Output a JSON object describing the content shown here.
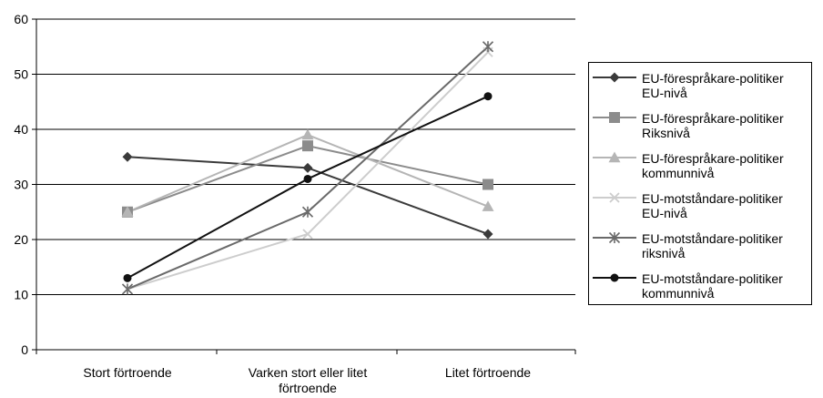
{
  "chart_data": {
    "type": "line",
    "categories": [
      "Stort förtroende",
      "Varken stort eller litet förtroende",
      "Litet förtroende"
    ],
    "category_lines": [
      [
        "Stort förtroende"
      ],
      [
        "Varken stort eller litet",
        "förtroende"
      ],
      [
        "Litet förtroende"
      ]
    ],
    "ylim": [
      0,
      60
    ],
    "yticks": [
      "0",
      "10",
      "20",
      "30",
      "40",
      "50",
      "60"
    ],
    "grid": true,
    "legend_position": "right",
    "series": [
      {
        "name": "EU-förespråkare-politiker EU-nivå",
        "label_lines": "EU-förespråkare-politiker\nEU-nivå",
        "values": [
          35,
          33,
          21
        ],
        "marker": "diamond",
        "color": "#3a3a3a"
      },
      {
        "name": "EU-förespråkare-politiker Riksnivå",
        "label_lines": "EU-förespråkare-politiker\nRiksnivå",
        "values": [
          25,
          37,
          30
        ],
        "marker": "square",
        "color": "#8c8c8c"
      },
      {
        "name": "EU-förespråkare-politiker kommunnivå",
        "label_lines": "EU-förespråkare-politiker\nkommunnivå",
        "values": [
          25,
          39,
          26
        ],
        "marker": "triangle",
        "color": "#b5b5b5"
      },
      {
        "name": "EU-motståndare-politiker EU-nivå",
        "label_lines": "EU-motståndare-politiker\nEU-nivå",
        "values": [
          11,
          21,
          54
        ],
        "marker": "x",
        "color": "#cdcdcd"
      },
      {
        "name": "EU-motståndare-politiker riksnivå",
        "label_lines": "EU-motståndare-politiker\nriksnivå",
        "values": [
          11,
          25,
          55
        ],
        "marker": "star",
        "color": "#6a6a6a"
      },
      {
        "name": "EU-motståndare-politiker kommunnivå",
        "label_lines": "EU-motståndare-politiker\nkommunnivå",
        "values": [
          13,
          31,
          46
        ],
        "marker": "circle",
        "color": "#111111"
      }
    ]
  }
}
